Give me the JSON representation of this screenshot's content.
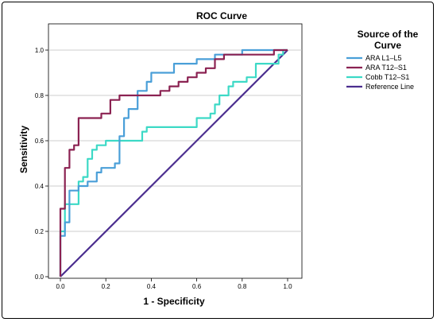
{
  "chart_data": {
    "type": "line",
    "title": "ROC Curve",
    "xlabel": "1 - Specificity",
    "ylabel": "Sensitivity",
    "xlim": [
      0,
      1.1
    ],
    "ylim": [
      0,
      1.1
    ],
    "x_ticks": [
      "0.0",
      "0.2",
      "0.4",
      "0.6",
      "0.8",
      "1.0"
    ],
    "y_ticks": [
      "0.0",
      "0.2",
      "0.4",
      "0.6",
      "0.8",
      "1.0"
    ],
    "grid": "horizontal",
    "legend": {
      "title_lines": [
        "Source of the",
        "Curve"
      ],
      "placement": "right"
    },
    "series": [
      {
        "name": "ARA L1–L5",
        "color": "#4A9FD8",
        "points": [
          [
            0,
            0
          ],
          [
            0,
            0.18
          ],
          [
            0.02,
            0.18
          ],
          [
            0.02,
            0.24
          ],
          [
            0.04,
            0.24
          ],
          [
            0.04,
            0.38
          ],
          [
            0.08,
            0.38
          ],
          [
            0.08,
            0.4
          ],
          [
            0.12,
            0.4
          ],
          [
            0.12,
            0.42
          ],
          [
            0.16,
            0.42
          ],
          [
            0.16,
            0.46
          ],
          [
            0.18,
            0.46
          ],
          [
            0.18,
            0.48
          ],
          [
            0.24,
            0.48
          ],
          [
            0.24,
            0.5
          ],
          [
            0.26,
            0.5
          ],
          [
            0.26,
            0.62
          ],
          [
            0.28,
            0.62
          ],
          [
            0.28,
            0.7
          ],
          [
            0.3,
            0.7
          ],
          [
            0.3,
            0.74
          ],
          [
            0.34,
            0.74
          ],
          [
            0.34,
            0.82
          ],
          [
            0.38,
            0.82
          ],
          [
            0.38,
            0.86
          ],
          [
            0.4,
            0.86
          ],
          [
            0.4,
            0.9
          ],
          [
            0.5,
            0.9
          ],
          [
            0.5,
            0.94
          ],
          [
            0.6,
            0.94
          ],
          [
            0.6,
            0.96
          ],
          [
            0.68,
            0.96
          ],
          [
            0.68,
            0.98
          ],
          [
            0.8,
            0.98
          ],
          [
            0.8,
            1.0
          ],
          [
            1.0,
            1.0
          ]
        ]
      },
      {
        "name": "ARA T12–S1",
        "color": "#8B2252",
        "points": [
          [
            0,
            0
          ],
          [
            0,
            0.3
          ],
          [
            0.02,
            0.3
          ],
          [
            0.02,
            0.48
          ],
          [
            0.04,
            0.48
          ],
          [
            0.04,
            0.56
          ],
          [
            0.06,
            0.56
          ],
          [
            0.06,
            0.58
          ],
          [
            0.08,
            0.58
          ],
          [
            0.08,
            0.7
          ],
          [
            0.18,
            0.7
          ],
          [
            0.18,
            0.72
          ],
          [
            0.22,
            0.72
          ],
          [
            0.22,
            0.78
          ],
          [
            0.26,
            0.78
          ],
          [
            0.26,
            0.8
          ],
          [
            0.44,
            0.8
          ],
          [
            0.44,
            0.82
          ],
          [
            0.48,
            0.82
          ],
          [
            0.48,
            0.84
          ],
          [
            0.52,
            0.84
          ],
          [
            0.52,
            0.86
          ],
          [
            0.56,
            0.86
          ],
          [
            0.56,
            0.88
          ],
          [
            0.6,
            0.88
          ],
          [
            0.6,
            0.9
          ],
          [
            0.64,
            0.9
          ],
          [
            0.64,
            0.92
          ],
          [
            0.68,
            0.92
          ],
          [
            0.68,
            0.96
          ],
          [
            0.72,
            0.96
          ],
          [
            0.72,
            0.98
          ],
          [
            0.94,
            0.98
          ],
          [
            0.94,
            1.0
          ],
          [
            1.0,
            1.0
          ]
        ]
      },
      {
        "name": "Cobb T12–S1",
        "color": "#3CD9C6",
        "points": [
          [
            0,
            0
          ],
          [
            0,
            0.2
          ],
          [
            0.02,
            0.2
          ],
          [
            0.02,
            0.32
          ],
          [
            0.08,
            0.32
          ],
          [
            0.08,
            0.42
          ],
          [
            0.1,
            0.42
          ],
          [
            0.1,
            0.44
          ],
          [
            0.12,
            0.44
          ],
          [
            0.12,
            0.52
          ],
          [
            0.14,
            0.52
          ],
          [
            0.14,
            0.56
          ],
          [
            0.16,
            0.56
          ],
          [
            0.16,
            0.58
          ],
          [
            0.2,
            0.58
          ],
          [
            0.2,
            0.6
          ],
          [
            0.36,
            0.6
          ],
          [
            0.36,
            0.64
          ],
          [
            0.38,
            0.64
          ],
          [
            0.38,
            0.66
          ],
          [
            0.6,
            0.66
          ],
          [
            0.6,
            0.7
          ],
          [
            0.66,
            0.7
          ],
          [
            0.66,
            0.72
          ],
          [
            0.68,
            0.72
          ],
          [
            0.68,
            0.76
          ],
          [
            0.7,
            0.76
          ],
          [
            0.7,
            0.8
          ],
          [
            0.74,
            0.8
          ],
          [
            0.74,
            0.84
          ],
          [
            0.76,
            0.84
          ],
          [
            0.76,
            0.86
          ],
          [
            0.82,
            0.86
          ],
          [
            0.82,
            0.88
          ],
          [
            0.86,
            0.88
          ],
          [
            0.86,
            0.94
          ],
          [
            0.96,
            0.94
          ],
          [
            0.96,
            0.98
          ],
          [
            0.98,
            0.98
          ],
          [
            0.98,
            1.0
          ],
          [
            1.0,
            1.0
          ]
        ]
      },
      {
        "name": "Reference Line",
        "color": "#4B2E8F",
        "points": [
          [
            0,
            0
          ],
          [
            1,
            1
          ]
        ]
      }
    ]
  }
}
